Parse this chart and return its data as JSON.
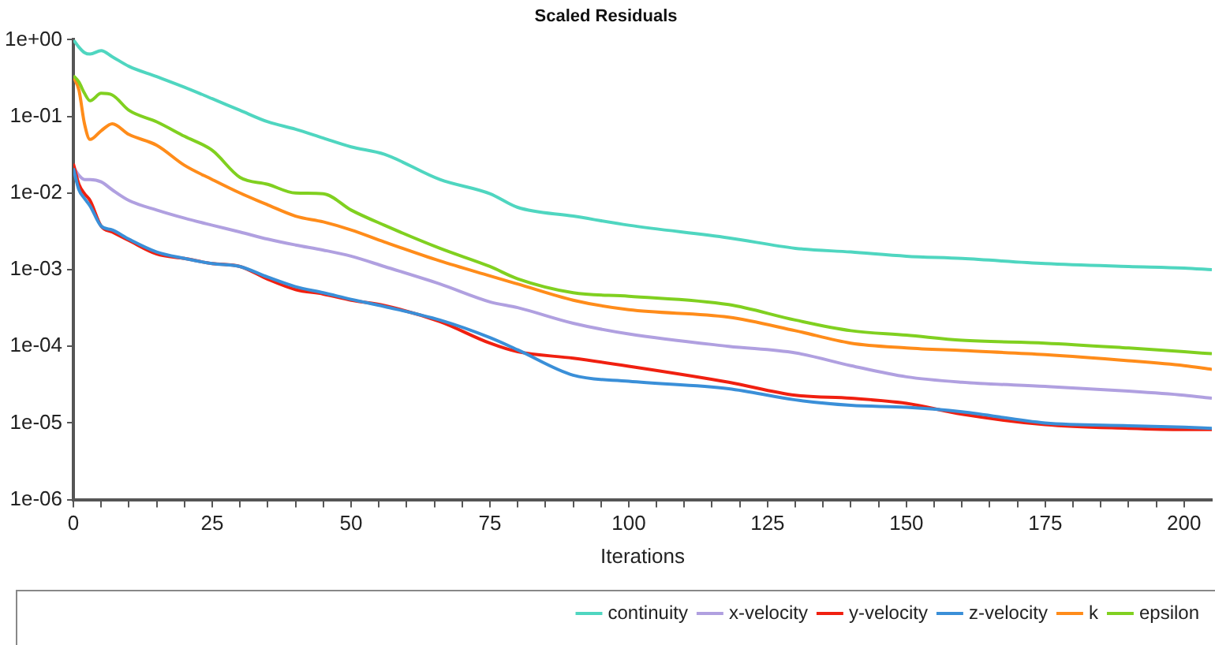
{
  "chart_data": {
    "type": "line",
    "title": "Scaled Residuals",
    "xlabel": "Iterations",
    "x": [
      0,
      1,
      2,
      3,
      5,
      7,
      10,
      15,
      20,
      25,
      30,
      35,
      40,
      45,
      50,
      56,
      66,
      75,
      80,
      90,
      100,
      118,
      130,
      140,
      150,
      160,
      175,
      190,
      200,
      205
    ],
    "series": [
      {
        "name": "continuity",
        "color": "#4fd6c0",
        "values": [
          1.0,
          0.8,
          0.68,
          0.65,
          0.72,
          0.6,
          0.45,
          0.33,
          0.24,
          0.17,
          0.12,
          0.085,
          0.068,
          0.052,
          0.04,
          0.032,
          0.015,
          0.0098,
          0.0065,
          0.005,
          0.0038,
          0.0026,
          0.0019,
          0.0017,
          0.0015,
          0.0014,
          0.0012,
          0.0011,
          0.00105,
          0.001
        ]
      },
      {
        "name": "x-velocity",
        "color": "#b0a0e0",
        "values": [
          0.022,
          0.017,
          0.015,
          0.015,
          0.014,
          0.011,
          0.008,
          0.006,
          0.0047,
          0.0038,
          0.0031,
          0.0025,
          0.0021,
          0.0018,
          0.0015,
          0.0011,
          0.00065,
          0.00038,
          0.00032,
          0.0002,
          0.000145,
          0.0001,
          8.2e-05,
          5.6e-05,
          4e-05,
          3.4e-05,
          3e-05,
          2.6e-05,
          2.3e-05,
          2.1e-05
        ]
      },
      {
        "name": "y-velocity",
        "color": "#f02010",
        "values": [
          0.024,
          0.013,
          0.0098,
          0.008,
          0.0037,
          0.0031,
          0.0024,
          0.0016,
          0.0014,
          0.0012,
          0.0011,
          0.00075,
          0.00055,
          0.00048,
          0.0004,
          0.00034,
          0.00021,
          0.00011,
          8.5e-05,
          7e-05,
          5.5e-05,
          3.4e-05,
          2.3e-05,
          2.1e-05,
          1.8e-05,
          1.3e-05,
          9.5e-06,
          8.5e-06,
          8.2e-06,
          8.2e-06
        ]
      },
      {
        "name": "z-velocity",
        "color": "#3a8fd8",
        "values": [
          0.021,
          0.011,
          0.0085,
          0.0068,
          0.0037,
          0.0033,
          0.0025,
          0.0017,
          0.0014,
          0.0012,
          0.0011,
          0.0008,
          0.0006,
          0.0005,
          0.00041,
          0.00033,
          0.00022,
          0.00013,
          9e-05,
          4.2e-05,
          3.5e-05,
          2.8e-05,
          2e-05,
          1.7e-05,
          1.6e-05,
          1.4e-05,
          1e-05,
          9.2e-06,
          8.8e-06,
          8.5e-06
        ]
      },
      {
        "name": "k",
        "color": "#ff8c1a",
        "values": [
          0.33,
          0.22,
          0.08,
          0.05,
          0.065,
          0.08,
          0.058,
          0.042,
          0.023,
          0.015,
          0.01,
          0.007,
          0.005,
          0.0042,
          0.0033,
          0.0023,
          0.0013,
          0.00083,
          0.00065,
          0.0004,
          0.0003,
          0.00024,
          0.00016,
          0.00011,
          9.55e-05,
          8.8e-05,
          7.8e-05,
          6.5e-05,
          5.6e-05,
          5e-05
        ]
      },
      {
        "name": "epsilon",
        "color": "#80d020",
        "values": [
          0.34,
          0.28,
          0.2,
          0.16,
          0.2,
          0.19,
          0.12,
          0.085,
          0.055,
          0.036,
          0.016,
          0.013,
          0.01,
          0.0098,
          0.006,
          0.0038,
          0.0019,
          0.0011,
          0.00076,
          0.0005,
          0.00045,
          0.00035,
          0.00022,
          0.00016,
          0.00014,
          0.00012,
          0.00011,
          9.5e-05,
          8.5e-05,
          8e-05
        ]
      }
    ],
    "xlim": [
      0,
      205
    ],
    "xticks": [
      0,
      {
        "value": 5,
        "label": null
      },
      {
        "value": 10,
        "label": null
      },
      {
        "value": 15,
        "label": null
      },
      {
        "value": 20,
        "label": null
      },
      25,
      {
        "value": 30,
        "label": null
      },
      {
        "value": 35,
        "label": null
      },
      {
        "value": 40,
        "label": null
      },
      {
        "value": 45,
        "label": null
      },
      50,
      {
        "value": 55,
        "label": null
      },
      {
        "value": 60,
        "label": null
      },
      {
        "value": 65,
        "label": null
      },
      {
        "value": 70,
        "label": null
      },
      75,
      {
        "value": 80,
        "label": null
      },
      {
        "value": 85,
        "label": null
      },
      {
        "value": 90,
        "label": null
      },
      {
        "value": 95,
        "label": null
      },
      100,
      {
        "value": 105,
        "label": null
      },
      {
        "value": 110,
        "label": null
      },
      {
        "value": 115,
        "label": null
      },
      {
        "value": 120,
        "label": null
      },
      125,
      {
        "value": 130,
        "label": null
      },
      {
        "value": 135,
        "label": null
      },
      {
        "value": 140,
        "label": null
      },
      {
        "value": 145,
        "label": null
      },
      150,
      {
        "value": 155,
        "label": null
      },
      {
        "value": 160,
        "label": null
      },
      {
        "value": 165,
        "label": null
      },
      {
        "value": 170,
        "label": null
      },
      175,
      {
        "value": 180,
        "label": null
      },
      {
        "value": 185,
        "label": null
      },
      {
        "value": 190,
        "label": null
      },
      {
        "value": 195,
        "label": null
      },
      200
    ],
    "ylim": [
      1e-06,
      1
    ],
    "yticks": [
      {
        "value": 1,
        "label": "1e+00"
      },
      {
        "value": 0.1,
        "label": "1e-01"
      },
      {
        "value": 0.01,
        "label": "1e-02"
      },
      {
        "value": 0.001,
        "label": "1e-03"
      },
      {
        "value": 0.0001,
        "label": "1e-04"
      },
      {
        "value": 1e-05,
        "label": "1e-05"
      },
      {
        "value": 1e-06,
        "label": "1e-06"
      }
    ],
    "log": "y",
    "grid": false,
    "legend": "bottom",
    "marker": "none",
    "line_style": "solid"
  }
}
